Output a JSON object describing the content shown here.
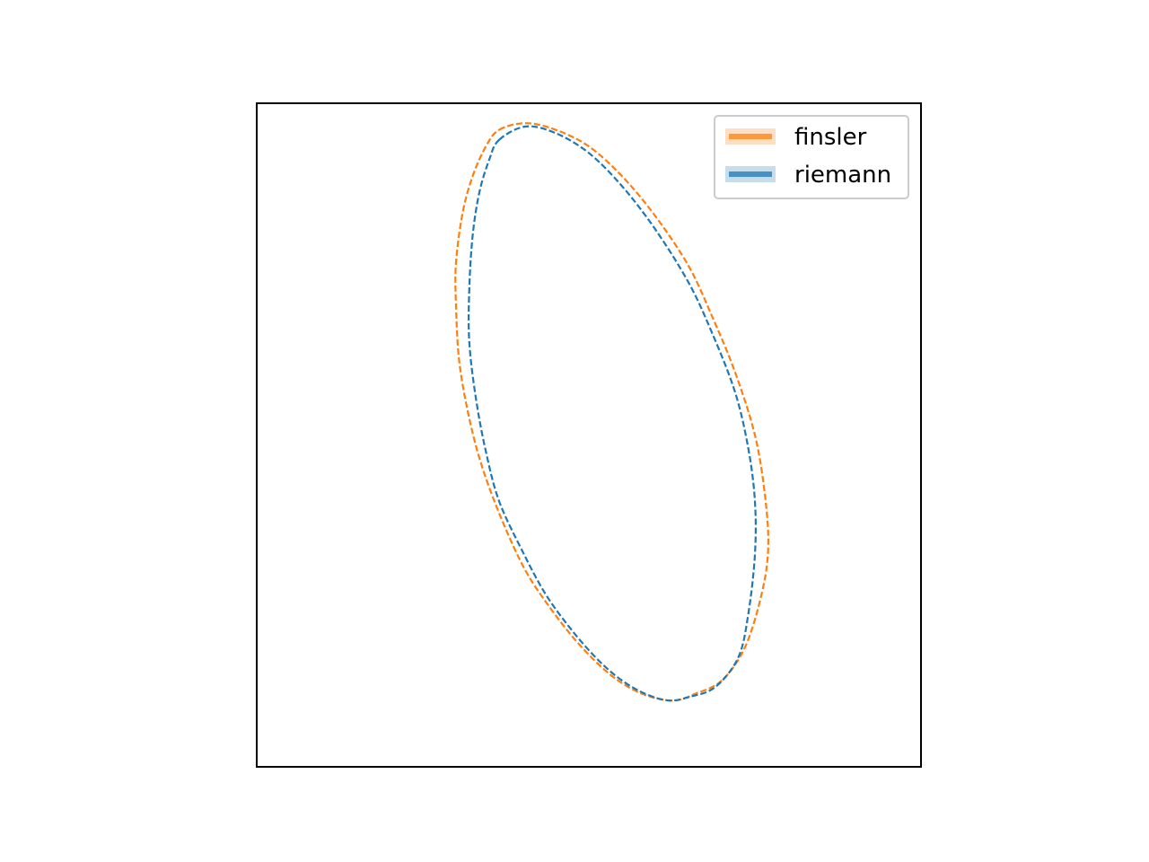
{
  "chart_data": {
    "type": "line",
    "title": "",
    "xlabel": "",
    "ylabel": "",
    "xticks": [],
    "yticks": [],
    "grid": false,
    "legend_placement": "top-right",
    "aspect": "equal",
    "xlim": [
      -1.0,
      1.0
    ],
    "ylim": [
      -1.0,
      1.0
    ],
    "series": [
      {
        "name": "finsler",
        "color": "#ff7f0e",
        "linestyle": "dashed",
        "shape": "closed-curve",
        "center": [
          0.04,
          -0.02
        ],
        "semi_axes": [
          0.37,
          0.9
        ],
        "rotation_deg": 17.5,
        "points": [
          [
            -0.27,
            0.92
          ],
          [
            -0.19,
            0.94
          ],
          [
            -0.1,
            0.92
          ],
          [
            0.0,
            0.87
          ],
          [
            0.1,
            0.78
          ],
          [
            0.2,
            0.66
          ],
          [
            0.3,
            0.51
          ],
          [
            0.37,
            0.36
          ],
          [
            0.44,
            0.19
          ],
          [
            0.5,
            0.0
          ],
          [
            0.53,
            -0.18
          ],
          [
            0.54,
            -0.34
          ],
          [
            0.52,
            -0.48
          ],
          [
            0.47,
            -0.64
          ],
          [
            0.4,
            -0.74
          ],
          [
            0.32,
            -0.78
          ],
          [
            0.26,
            -0.8
          ],
          [
            0.19,
            -0.79
          ],
          [
            0.12,
            -0.76
          ],
          [
            0.05,
            -0.71
          ],
          [
            -0.03,
            -0.63
          ],
          [
            -0.11,
            -0.53
          ],
          [
            -0.19,
            -0.41
          ],
          [
            -0.26,
            -0.26
          ],
          [
            -0.32,
            -0.1
          ],
          [
            -0.36,
            0.05
          ],
          [
            -0.39,
            0.22
          ],
          [
            -0.4,
            0.39
          ],
          [
            -0.4,
            0.52
          ],
          [
            -0.38,
            0.67
          ],
          [
            -0.35,
            0.78
          ],
          [
            -0.31,
            0.87
          ],
          [
            -0.27,
            0.92
          ]
        ]
      },
      {
        "name": "riemann",
        "color": "#1f77b4",
        "linestyle": "dashed",
        "shape": "closed-curve",
        "center": [
          0.04,
          -0.02
        ],
        "semi_axes": [
          0.335,
          0.875
        ],
        "rotation_deg": 17.5,
        "points": [
          [
            -0.27,
            0.89
          ],
          [
            -0.19,
            0.93
          ],
          [
            -0.1,
            0.91
          ],
          [
            0.0,
            0.85
          ],
          [
            0.1,
            0.75
          ],
          [
            0.2,
            0.62
          ],
          [
            0.3,
            0.46
          ],
          [
            0.37,
            0.31
          ],
          [
            0.44,
            0.13
          ],
          [
            0.48,
            -0.04
          ],
          [
            0.5,
            -0.2
          ],
          [
            0.5,
            -0.36
          ],
          [
            0.48,
            -0.54
          ],
          [
            0.45,
            -0.67
          ],
          [
            0.38,
            -0.76
          ],
          [
            0.3,
            -0.79
          ],
          [
            0.24,
            -0.8
          ],
          [
            0.17,
            -0.78
          ],
          [
            0.1,
            -0.74
          ],
          [
            0.03,
            -0.68
          ],
          [
            -0.05,
            -0.59
          ],
          [
            -0.13,
            -0.48
          ],
          [
            -0.2,
            -0.35
          ],
          [
            -0.27,
            -0.2
          ],
          [
            -0.31,
            -0.05
          ],
          [
            -0.34,
            0.11
          ],
          [
            -0.36,
            0.28
          ],
          [
            -0.36,
            0.44
          ],
          [
            -0.35,
            0.6
          ],
          [
            -0.33,
            0.73
          ],
          [
            -0.3,
            0.83
          ],
          [
            -0.27,
            0.89
          ]
        ]
      }
    ]
  }
}
